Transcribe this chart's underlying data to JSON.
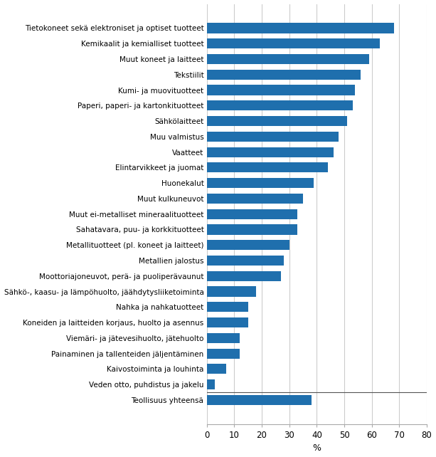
{
  "categories": [
    "Tietokoneet sekä elektroniset ja optiset tuotteet",
    "Kemikaalit ja kemialliset tuotteet",
    "Muut koneet ja laitteet",
    "Tekstiilit",
    "Kumi- ja muovituotteet",
    "Paperi, paperi- ja kartonkituotteet",
    "Sähkölaitteet",
    "Muu valmistus",
    "Vaatteet",
    "Elintarvikkeet ja juomat",
    "Huonekalut",
    "Muut kulkuneuvot",
    "Muut ei-metalliset mineraalituotteet",
    "Sahatavara, puu- ja korkkituotteet",
    "Metallituotteet (pl. koneet ja laitteet)",
    "Metallien jalostus",
    "Moottoriajoneuvot, perä- ja puoliperävaunut",
    "Sähkö-, kaasu- ja lämpöhuolto, jäähdytysliiketoiminta",
    "Nahka ja nahkatuotteet",
    "Koneiden ja laitteiden korjaus, huolto ja asennus",
    "Viemäri- ja jätevesihuolto, jätehuolto",
    "Painaminen ja tallenteiden jäljentäminen",
    "Kaivostoiminta ja louhinta",
    "Veden otto, puhdistus ja jakelu",
    "Teollisuus yhteensä"
  ],
  "values": [
    68,
    63,
    59,
    56,
    54,
    53,
    51,
    48,
    46,
    44,
    39,
    35,
    33,
    33,
    30,
    28,
    27,
    18,
    15,
    15,
    12,
    12,
    7,
    3,
    38
  ],
  "bar_color": "#1f6fad",
  "xlabel": "%",
  "xlim": [
    0,
    80
  ],
  "xticks": [
    0,
    10,
    20,
    30,
    40,
    50,
    60,
    70,
    80
  ],
  "grid_color": "#cccccc",
  "bg_color": "#ffffff",
  "bar_height": 0.65,
  "fontsize_labels": 7.5,
  "fontsize_xlabel": 9,
  "fontsize_xticks": 8.5
}
